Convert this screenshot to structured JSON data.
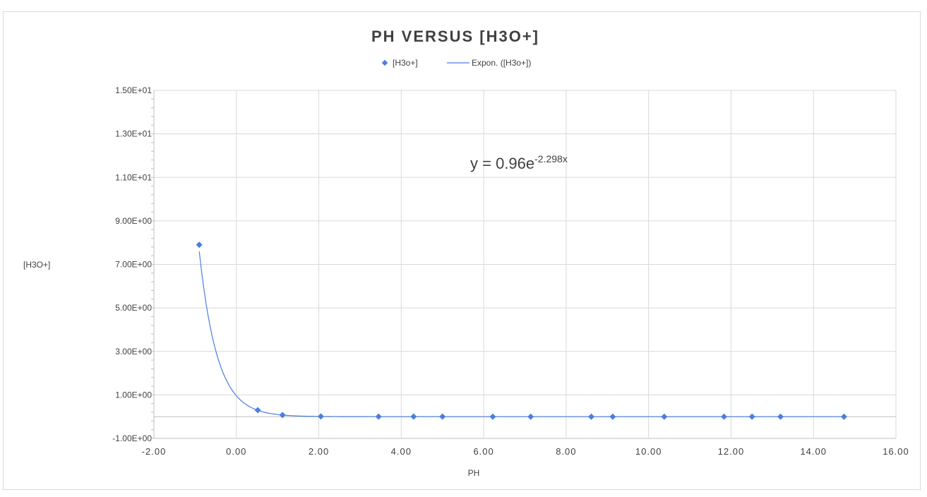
{
  "chart_data": {
    "type": "scatter",
    "title": "PH VERSUS [H3O+]",
    "xlabel": "PH",
    "ylabel": "[H3O+]",
    "xlim": [
      -2,
      16
    ],
    "ylim": [
      -1,
      15
    ],
    "x_ticks": [
      "-2.00",
      "0.00",
      "2.00",
      "4.00",
      "6.00",
      "8.00",
      "10.00",
      "12.00",
      "14.00",
      "16.00"
    ],
    "y_ticks": [
      "-1.00E+00",
      "1.00E+00",
      "3.00E+00",
      "5.00E+00",
      "7.00E+00",
      "9.00E+00",
      "1.10E+01",
      "1.30E+01",
      "1.50E+01"
    ],
    "grid": true,
    "legend_position": "top",
    "series": [
      {
        "name": "[H3o+]",
        "kind": "scatter",
        "color": "#4a7ee0",
        "x": [
          -0.9,
          0.52,
          1.12,
          2.05,
          3.45,
          4.3,
          5.0,
          6.22,
          7.14,
          8.61,
          9.13,
          10.38,
          11.83,
          12.51,
          13.2,
          14.74
        ],
        "y": [
          7.9,
          0.3,
          0.076,
          0.0089,
          0.00035,
          5e-05,
          1e-05,
          6e-07,
          7e-08,
          2.5e-09,
          7.4e-10,
          4.2e-11,
          1.5e-12,
          3e-13,
          6e-14,
          1.8e-15
        ]
      },
      {
        "name": "Expon. ([H3o+])",
        "kind": "trendline",
        "color": "#4a7ee0",
        "a": 0.96,
        "b": -2.298
      }
    ],
    "annotations": {
      "equation_base": "y = 0.96e",
      "equation_exp": "-2.298x"
    }
  }
}
